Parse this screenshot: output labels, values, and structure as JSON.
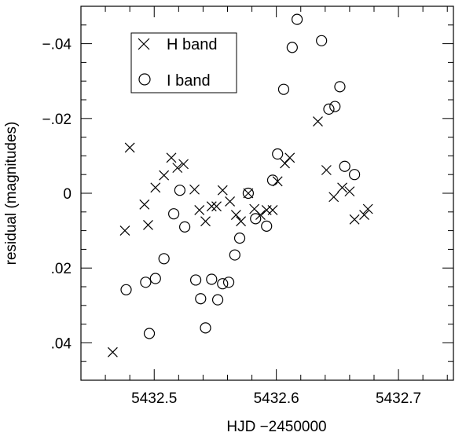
{
  "chart_data": {
    "type": "scatter",
    "xlabel": "HJD −2450000",
    "ylabel": "residual (magnitudes)",
    "xlim": [
      5432.44,
      5432.745
    ],
    "ylim": [
      0.05,
      -0.05
    ],
    "y_inverted": true,
    "grid": false,
    "legend_position": "top-left",
    "x_ticks": [
      {
        "value": 5432.5,
        "label": "5432.5"
      },
      {
        "value": 5432.6,
        "label": "5432.6"
      },
      {
        "value": 5432.7,
        "label": "5432.7"
      }
    ],
    "y_ticks": [
      {
        "value": -0.04,
        "label": "−.04"
      },
      {
        "value": -0.02,
        "label": "−.02"
      },
      {
        "value": 0,
        "label": "0"
      },
      {
        "value": 0.02,
        "label": ".02"
      },
      {
        "value": 0.04,
        "label": ".04"
      }
    ],
    "series": [
      {
        "name": "H band",
        "marker": "x",
        "points": [
          {
            "x": 5432.466,
            "y": 0.0425
          },
          {
            "x": 5432.476,
            "y": 0.01
          },
          {
            "x": 5432.48,
            "y": -0.0122
          },
          {
            "x": 5432.492,
            "y": 0.003
          },
          {
            "x": 5432.495,
            "y": 0.0085
          },
          {
            "x": 5432.501,
            "y": -0.0015
          },
          {
            "x": 5432.508,
            "y": -0.0048
          },
          {
            "x": 5432.514,
            "y": -0.0095
          },
          {
            "x": 5432.519,
            "y": -0.0068
          },
          {
            "x": 5432.524,
            "y": -0.0078
          },
          {
            "x": 5432.533,
            "y": -0.001
          },
          {
            "x": 5432.537,
            "y": 0.0045
          },
          {
            "x": 5432.542,
            "y": 0.0075
          },
          {
            "x": 5432.547,
            "y": 0.0035
          },
          {
            "x": 5432.551,
            "y": 0.0035
          },
          {
            "x": 5432.556,
            "y": -0.0008
          },
          {
            "x": 5432.562,
            "y": 0.0022
          },
          {
            "x": 5432.567,
            "y": 0.0058
          },
          {
            "x": 5432.571,
            "y": 0.0075
          },
          {
            "x": 5432.577,
            "y": 0.0
          },
          {
            "x": 5432.582,
            "y": 0.0042
          },
          {
            "x": 5432.587,
            "y": 0.0058
          },
          {
            "x": 5432.592,
            "y": 0.0045
          },
          {
            "x": 5432.597,
            "y": 0.0045
          },
          {
            "x": 5432.601,
            "y": -0.0032
          },
          {
            "x": 5432.607,
            "y": -0.008
          },
          {
            "x": 5432.611,
            "y": -0.0095
          },
          {
            "x": 5432.634,
            "y": -0.0192
          },
          {
            "x": 5432.641,
            "y": -0.0062
          },
          {
            "x": 5432.647,
            "y": 0.001
          },
          {
            "x": 5432.654,
            "y": -0.0015
          },
          {
            "x": 5432.66,
            "y": -0.0005
          },
          {
            "x": 5432.664,
            "y": 0.007
          },
          {
            "x": 5432.672,
            "y": 0.0058
          },
          {
            "x": 5432.675,
            "y": 0.0042
          }
        ]
      },
      {
        "name": "I band",
        "marker": "circle",
        "points": [
          {
            "x": 5432.477,
            "y": 0.0258
          },
          {
            "x": 5432.493,
            "y": 0.0238
          },
          {
            "x": 5432.496,
            "y": 0.0375
          },
          {
            "x": 5432.501,
            "y": 0.0228
          },
          {
            "x": 5432.508,
            "y": 0.0175
          },
          {
            "x": 5432.516,
            "y": 0.0055
          },
          {
            "x": 5432.521,
            "y": -0.0008
          },
          {
            "x": 5432.525,
            "y": 0.009
          },
          {
            "x": 5432.534,
            "y": 0.0232
          },
          {
            "x": 5432.538,
            "y": 0.0282
          },
          {
            "x": 5432.542,
            "y": 0.036
          },
          {
            "x": 5432.547,
            "y": 0.023
          },
          {
            "x": 5432.552,
            "y": 0.0285
          },
          {
            "x": 5432.556,
            "y": 0.0242
          },
          {
            "x": 5432.561,
            "y": 0.0238
          },
          {
            "x": 5432.566,
            "y": 0.0165
          },
          {
            "x": 5432.57,
            "y": 0.012
          },
          {
            "x": 5432.577,
            "y": 0.0
          },
          {
            "x": 5432.583,
            "y": 0.0068
          },
          {
            "x": 5432.592,
            "y": 0.0088
          },
          {
            "x": 5432.597,
            "y": -0.0035
          },
          {
            "x": 5432.601,
            "y": -0.0105
          },
          {
            "x": 5432.606,
            "y": -0.0278
          },
          {
            "x": 5432.613,
            "y": -0.039
          },
          {
            "x": 5432.617,
            "y": -0.0465
          },
          {
            "x": 5432.637,
            "y": -0.0408
          },
          {
            "x": 5432.643,
            "y": -0.0225
          },
          {
            "x": 5432.648,
            "y": -0.0232
          },
          {
            "x": 5432.652,
            "y": -0.0285
          },
          {
            "x": 5432.656,
            "y": -0.0072
          },
          {
            "x": 5432.664,
            "y": -0.005
          }
        ]
      }
    ]
  }
}
